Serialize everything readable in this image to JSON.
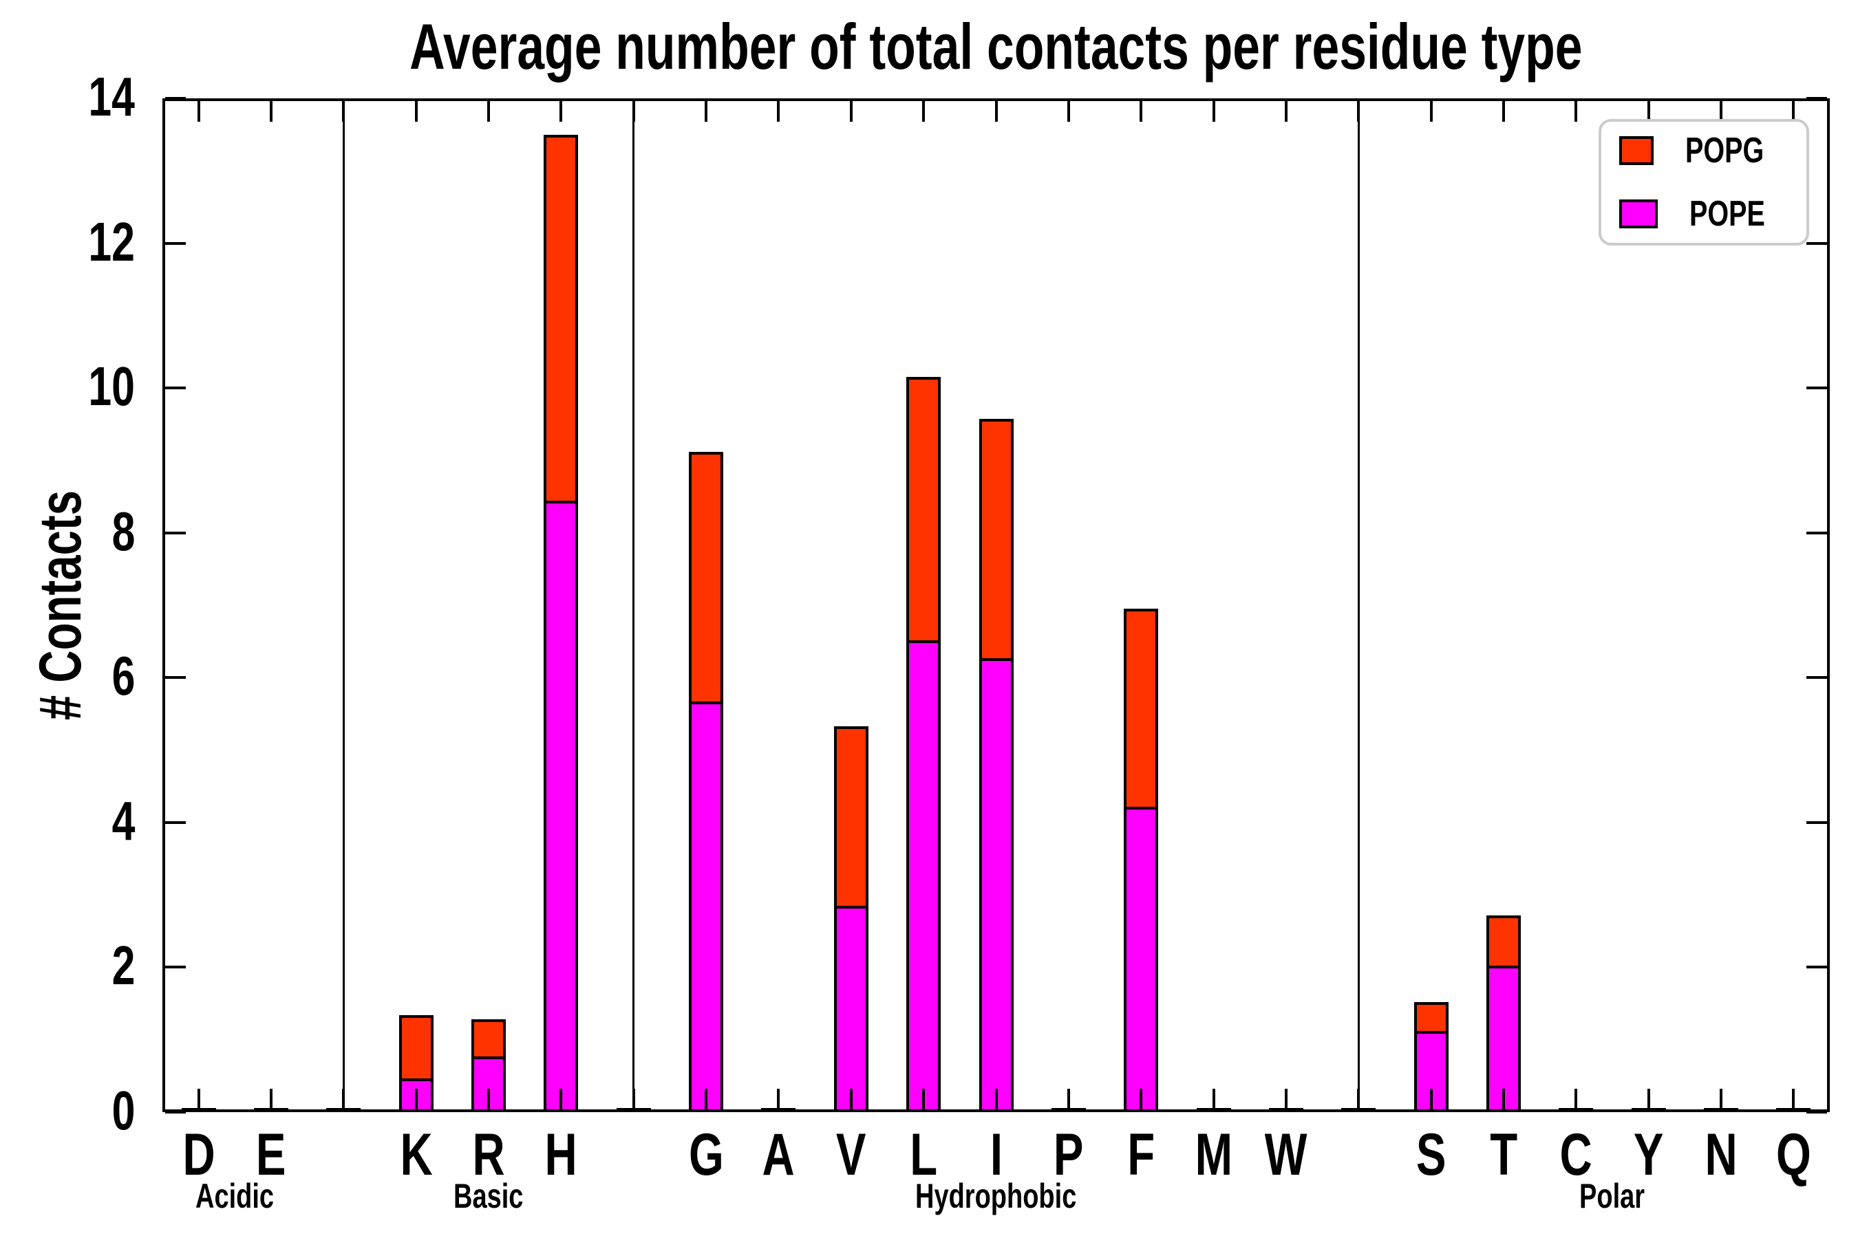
{
  "title": "Average number of total contacts per residue type",
  "y_axis": {
    "label": "# Contacts",
    "ticks": [
      0,
      2,
      4,
      6,
      8,
      10,
      12,
      14
    ],
    "min": 0,
    "max": 14
  },
  "legend": [
    {
      "label": "POPG",
      "color": "#ff3300"
    },
    {
      "label": "POPE",
      "color": "#ff00ff"
    }
  ],
  "groups": [
    {
      "name": "Acidic",
      "residues": [
        "D",
        "E"
      ]
    },
    {
      "name": "Basic",
      "residues": [
        "K",
        "R",
        "H"
      ]
    },
    {
      "name": "Hydrophobic",
      "residues": [
        "G",
        "A",
        "V",
        "L",
        "I",
        "P",
        "F",
        "M",
        "W"
      ]
    },
    {
      "name": "Polar",
      "residues": [
        "S",
        "T",
        "C",
        "Y",
        "N",
        "Q"
      ]
    }
  ],
  "chart_data": {
    "type": "bar",
    "stacked": true,
    "title": "Average number of total contacts per residue type",
    "xlabel": "",
    "ylabel": "# Contacts",
    "ylim": [
      0,
      14
    ],
    "grid": false,
    "legend_position": "upper right",
    "categories": [
      "D",
      "E",
      "K",
      "R",
      "H",
      "G",
      "A",
      "V",
      "L",
      "I",
      "P",
      "F",
      "M",
      "W",
      "S",
      "T",
      "C",
      "Y",
      "N",
      "Q"
    ],
    "series": [
      {
        "name": "POPE",
        "color": "#ff00ff",
        "values": [
          0.02,
          0.02,
          0.47,
          0.77,
          8.44,
          5.67,
          0.02,
          2.85,
          6.52,
          6.27,
          0.02,
          4.22,
          0.02,
          0.02,
          1.12,
          2.02,
          0.02,
          0.02,
          0.02,
          0.02
        ]
      },
      {
        "name": "POPG",
        "color": "#ff3300",
        "values": [
          0.0,
          0.0,
          0.87,
          0.51,
          5.06,
          3.45,
          0.0,
          2.48,
          3.63,
          3.3,
          0.0,
          2.73,
          0.0,
          0.0,
          0.4,
          0.7,
          0.0,
          0.0,
          0.0,
          0.0
        ]
      }
    ],
    "totals": [
      0.02,
      0.02,
      1.34,
      1.28,
      13.5,
      9.12,
      0.02,
      5.33,
      10.15,
      9.57,
      0.02,
      6.95,
      0.02,
      0.02,
      1.52,
      2.72,
      0.02,
      0.02,
      0.02,
      0.02
    ]
  }
}
